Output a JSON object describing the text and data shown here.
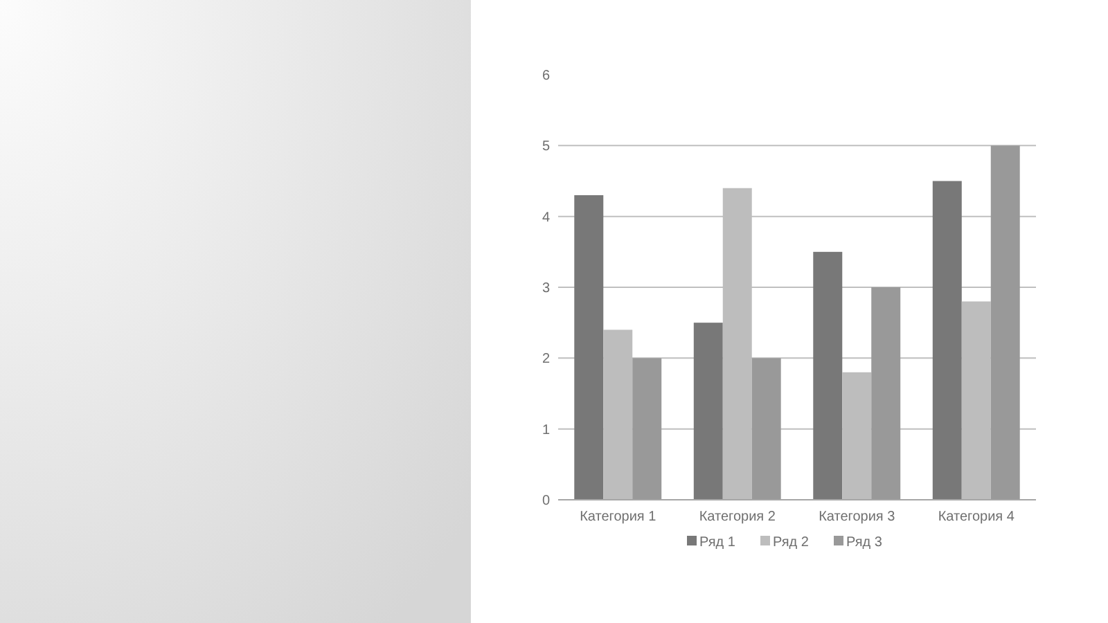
{
  "chart_data": {
    "type": "bar",
    "categories": [
      "Категория 1",
      "Категория 2",
      "Категория 3",
      "Категория 4"
    ],
    "series": [
      {
        "name": "Ряд 1",
        "color": "#787878",
        "values": [
          4.3,
          2.5,
          3.5,
          4.5
        ]
      },
      {
        "name": "Ряд 2",
        "color": "#bdbdbd",
        "values": [
          2.4,
          4.4,
          1.8,
          2.8
        ]
      },
      {
        "name": "Ряд 3",
        "color": "#999999",
        "values": [
          2,
          2,
          3,
          5
        ]
      }
    ],
    "ylim": [
      0,
      6
    ],
    "yticks": [
      0,
      1,
      2,
      3,
      4,
      5,
      6
    ],
    "grid": "y",
    "legend": "bottom"
  }
}
